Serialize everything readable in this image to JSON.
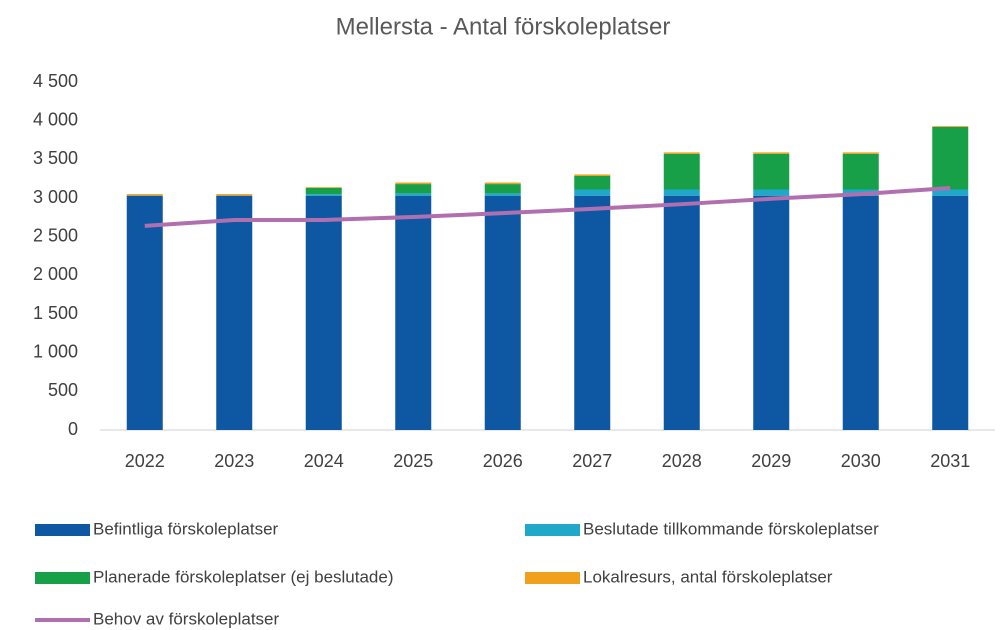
{
  "chart_data": {
    "type": "bar",
    "stacked": true,
    "title": "Mellersta - Antal förskoleplatser",
    "categories": [
      "2022",
      "2023",
      "2024",
      "2025",
      "2026",
      "2027",
      "2028",
      "2029",
      "2030",
      "2031"
    ],
    "series": [
      {
        "name": "Befintliga förskoleplatser",
        "color": "#0e57a3",
        "values": [
          3030,
          3030,
          3030,
          3030,
          3030,
          3030,
          3030,
          3030,
          3030,
          3030
        ]
      },
      {
        "name": "Beslutade tillkommande förskoleplatser",
        "color": "#1fa8c9",
        "values": [
          0,
          0,
          20,
          30,
          30,
          80,
          80,
          80,
          80,
          80
        ]
      },
      {
        "name": "Planerade förskoleplatser (ej beslutade)",
        "color": "#18a048",
        "values": [
          0,
          0,
          80,
          120,
          120,
          175,
          460,
          460,
          460,
          810
        ]
      },
      {
        "name": "Lokalresurs, antal förskoleplatser",
        "color": "#f0a01c",
        "values": [
          20,
          20,
          10,
          20,
          20,
          20,
          20,
          20,
          20,
          10
        ]
      },
      {
        "name": "Behov av förskoleplatser",
        "color": "#b070b0",
        "type": "line",
        "values": [
          2640,
          2715,
          2715,
          2755,
          2805,
          2860,
          2920,
          2990,
          3050,
          3130
        ]
      }
    ],
    "ylim": [
      0,
      4500
    ],
    "yticks": [
      0,
      500,
      {
        "value": 1000,
        "label": "1 000"
      },
      {
        "value": 1500,
        "label": "1 500"
      },
      {
        "value": 2000,
        "label": "2 000"
      },
      {
        "value": 2500,
        "label": "2 500"
      },
      {
        "value": 3000,
        "label": "3 000"
      },
      {
        "value": 3500,
        "label": "3 500"
      },
      {
        "value": 4000,
        "label": "4 000"
      },
      {
        "value": 4500,
        "label": "4 500"
      }
    ],
    "grid": false
  }
}
